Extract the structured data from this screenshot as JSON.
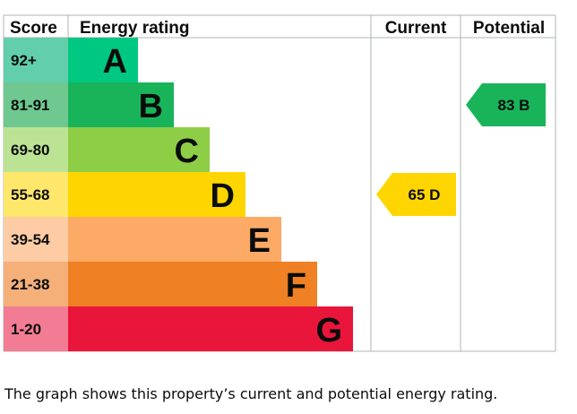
{
  "chart_data": {
    "type": "bar",
    "headers": {
      "score": "Score",
      "rating": "Energy rating",
      "current": "Current",
      "potential": "Potential"
    },
    "bands": [
      {
        "letter": "A",
        "range": "92+",
        "color": "#00c781",
        "score_color": "#63ceac"
      },
      {
        "letter": "B",
        "range": "81-91",
        "color": "#19b459",
        "score_color": "#6ec88f"
      },
      {
        "letter": "C",
        "range": "69-80",
        "color": "#8dce46",
        "score_color": "#bce394"
      },
      {
        "letter": "D",
        "range": "55-68",
        "color": "#ffd500",
        "score_color": "#ffe76c"
      },
      {
        "letter": "E",
        "range": "39-54",
        "color": "#fcaa65",
        "score_color": "#fdcca4"
      },
      {
        "letter": "F",
        "range": "21-38",
        "color": "#ef8023",
        "score_color": "#f5b07a"
      },
      {
        "letter": "G",
        "range": "1-20",
        "color": "#e9153b",
        "score_color": "#f27c93"
      }
    ],
    "current": {
      "value": 65,
      "letter": "D",
      "label": "65 D",
      "color": "#ffd500"
    },
    "potential": {
      "value": 83,
      "letter": "B",
      "label": "83 B",
      "color": "#19b459"
    }
  },
  "caption": "The graph shows this property’s current and potential energy rating."
}
